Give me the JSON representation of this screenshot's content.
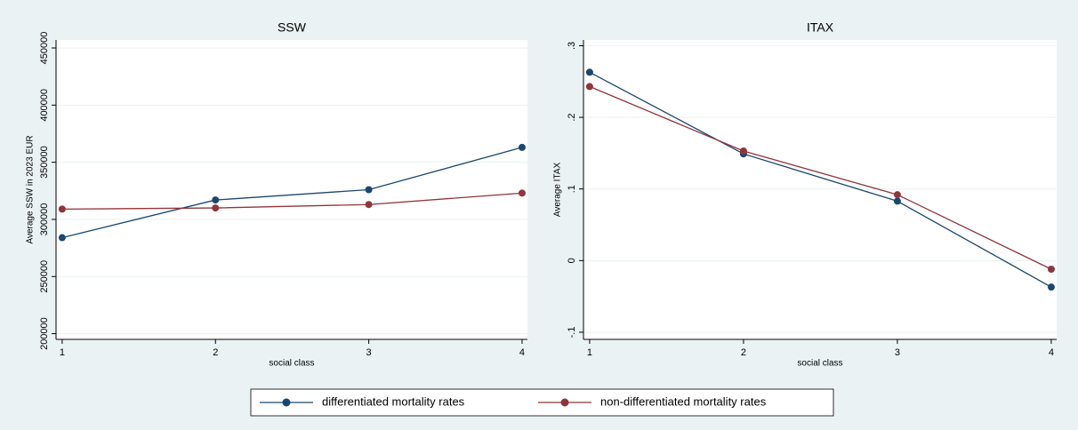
{
  "chart_data": [
    {
      "type": "line",
      "title": "SSW",
      "x_label": "social class",
      "y_label": "Average SSW in 2023 EUR",
      "x": [
        1,
        2,
        3,
        4
      ],
      "xlim": [
        0.96,
        4.035
      ],
      "xticks": [
        1,
        2,
        3,
        4
      ],
      "ylim": [
        195000,
        457000
      ],
      "yticks": [
        200000,
        250000,
        300000,
        350000,
        400000,
        450000
      ],
      "grid": true,
      "series": [
        {
          "name": "differentiated mortality rates",
          "color": "#1a476f",
          "values": [
            284000,
            317000,
            326000,
            363000
          ]
        },
        {
          "name": "non-differentiated mortality rates",
          "color": "#90353b",
          "values": [
            309000,
            310000,
            313000,
            323000
          ]
        }
      ]
    },
    {
      "type": "line",
      "title": "ITAX",
      "x_label": "social class",
      "y_label": "Average ITAX",
      "x": [
        1,
        2,
        3,
        4
      ],
      "xlim": [
        0.96,
        4.035
      ],
      "xticks": [
        1,
        2,
        3,
        4
      ],
      "ylim": [
        -0.11,
        0.308
      ],
      "yticks": [
        {
          "value": -0.1,
          "label": "-.1"
        },
        0,
        {
          "value": 0.1,
          "label": ".1"
        },
        {
          "value": 0.2,
          "label": ".2"
        },
        {
          "value": 0.3,
          "label": ".3"
        }
      ],
      "grid": true,
      "series": [
        {
          "name": "differentiated mortality rates",
          "color": "#1a476f",
          "values": [
            0.263,
            0.149,
            0.083,
            -0.037
          ]
        },
        {
          "name": "non-differentiated mortality rates",
          "color": "#90353b",
          "values": [
            0.243,
            0.153,
            0.092,
            -0.012
          ]
        }
      ]
    }
  ]
}
